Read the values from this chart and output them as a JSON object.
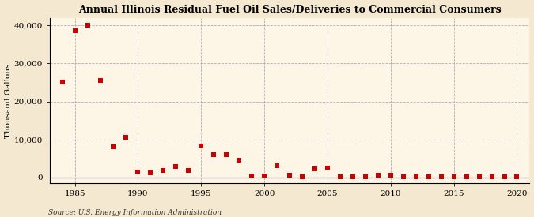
{
  "title": "Annual Illinois Residual Fuel Oil Sales/Deliveries to Commercial Consumers",
  "ylabel": "Thousand Gallons",
  "source": "Source: U.S. Energy Information Administration",
  "background_color": "#f5e8d0",
  "plot_bg_color": "#fdf5e6",
  "marker_color": "#cc0000",
  "marker": "s",
  "marker_size": 4,
  "xlim": [
    1983,
    2021
  ],
  "ylim": [
    -1500,
    42000
  ],
  "yticks": [
    0,
    10000,
    20000,
    30000,
    40000
  ],
  "xticks": [
    1985,
    1990,
    1995,
    2000,
    2005,
    2010,
    2015,
    2020
  ],
  "years": [
    1984,
    1985,
    1986,
    1987,
    1988,
    1989,
    1990,
    1991,
    1992,
    1993,
    1994,
    1995,
    1996,
    1997,
    1998,
    1999,
    2000,
    2001,
    2002,
    2003,
    2004,
    2005,
    2006,
    2007,
    2008,
    2009,
    2010,
    2011,
    2012,
    2013,
    2014,
    2015,
    2016,
    2017,
    2018,
    2019,
    2020
  ],
  "values": [
    25000,
    38500,
    40000,
    25500,
    8000,
    10500,
    1500,
    1200,
    1800,
    2800,
    1800,
    8200,
    6000,
    6000,
    4500,
    300,
    400,
    3200,
    700,
    200,
    2300,
    2500,
    100,
    100,
    100,
    700,
    600,
    200,
    200,
    100,
    100,
    200,
    100,
    100,
    100,
    100,
    100
  ]
}
